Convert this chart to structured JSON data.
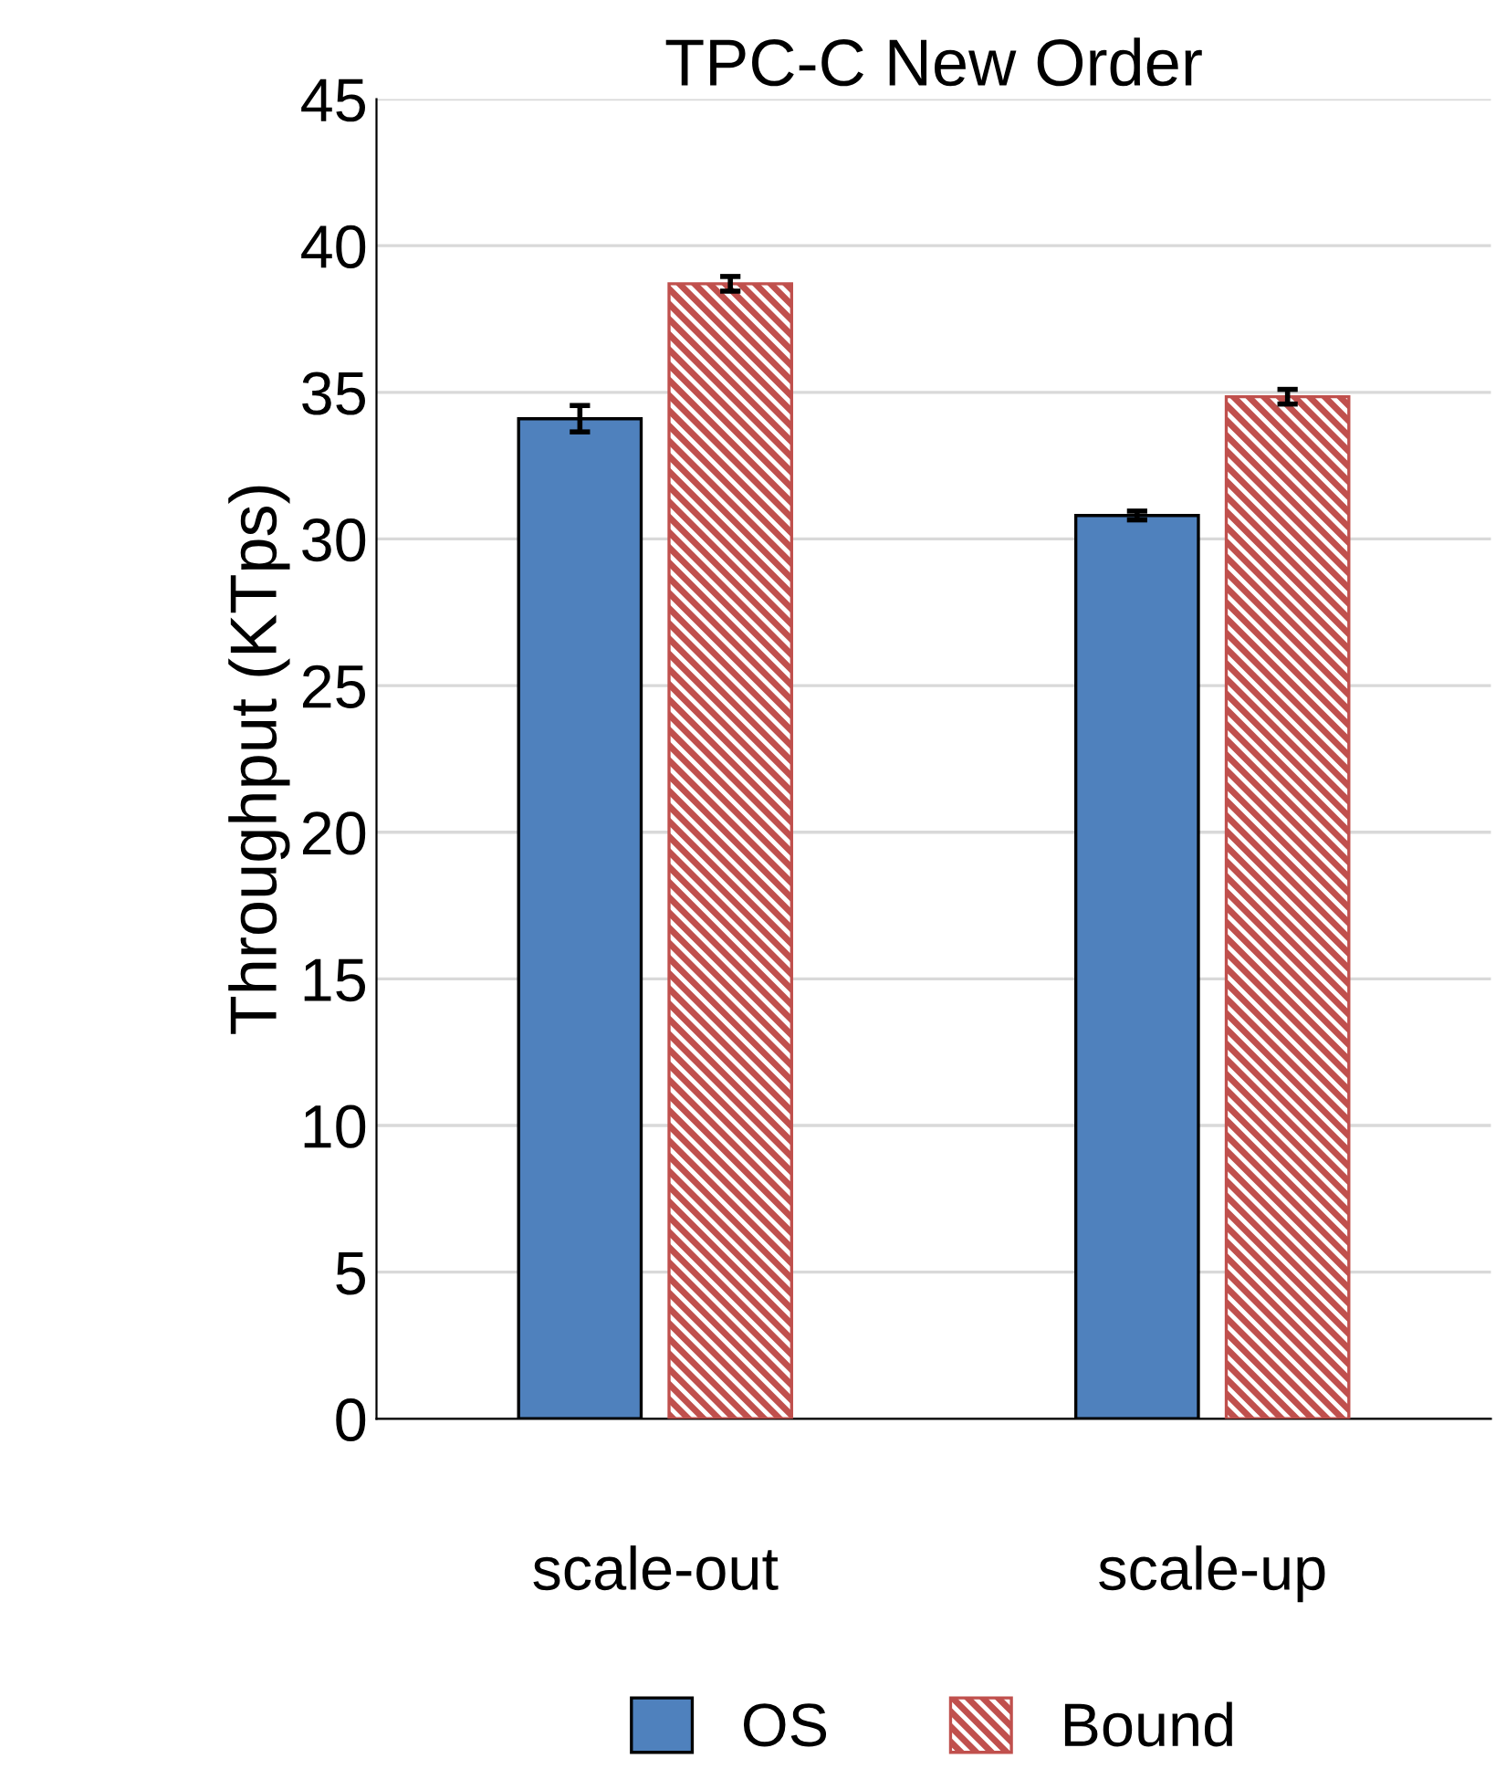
{
  "chart_data": {
    "type": "bar",
    "title": "TPC-C New Order",
    "ylabel": "Throughput (KTps)",
    "categories": [
      "scale-out",
      "scale-up"
    ],
    "series": [
      {
        "name": "OS",
        "color": "#4f81bd",
        "values": [
          34.1,
          30.8
        ],
        "errors": [
          0.45,
          0.15
        ]
      },
      {
        "name": "Bound",
        "color": "#c0504d",
        "values": [
          38.7,
          34.85
        ],
        "errors": [
          0.25,
          0.25
        ]
      }
    ],
    "ylim": [
      0,
      45
    ],
    "yticks": [
      0,
      5,
      10,
      15,
      20,
      25,
      30,
      35,
      40,
      45
    ],
    "grid": "y",
    "legend": "bottom"
  }
}
